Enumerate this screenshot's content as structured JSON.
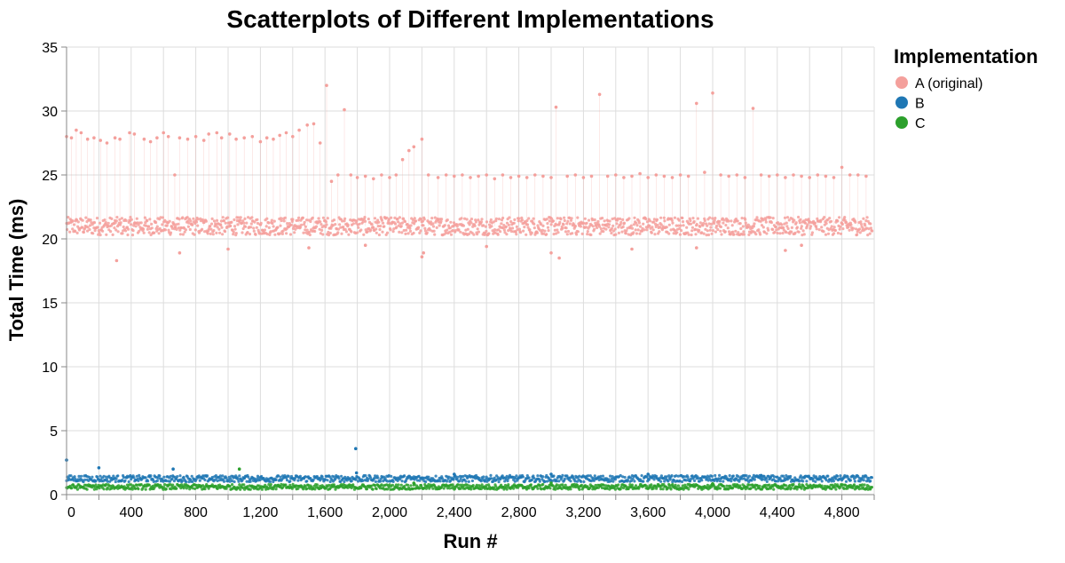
{
  "chart_data": {
    "type": "scatter",
    "title": "Scatterplots of Different Implementations",
    "xlabel": "Run #",
    "ylabel": "Total Time (ms)",
    "xlim": [
      0,
      5000
    ],
    "ylim": [
      0,
      35
    ],
    "x_ticks": [
      0,
      400,
      800,
      1200,
      1600,
      2000,
      2400,
      2800,
      3200,
      3600,
      4000,
      4400,
      4800
    ],
    "x_tick_labels": [
      "0",
      "400",
      "800",
      "1,200",
      "1,600",
      "2,000",
      "2,400",
      "2,800",
      "3,200",
      "3,600",
      "4,000",
      "4,400",
      "4,800"
    ],
    "y_ticks": [
      0,
      5,
      10,
      15,
      20,
      25,
      30,
      35
    ],
    "y_tick_labels": [
      "0",
      "5",
      "10",
      "15",
      "20",
      "25",
      "30",
      "35"
    ],
    "grid": true,
    "legend": {
      "title": "Implementation",
      "position": "top-right",
      "entries": [
        "A (original)",
        "B",
        "C"
      ]
    },
    "series": [
      {
        "name": "A (original)",
        "color": "#f4a09c",
        "typical_range": [
          20.3,
          21.7
        ],
        "points": [
          [
            0,
            28.0
          ],
          [
            30,
            27.9
          ],
          [
            60,
            28.5
          ],
          [
            90,
            28.3
          ],
          [
            130,
            27.8
          ],
          [
            170,
            27.9
          ],
          [
            210,
            27.7
          ],
          [
            250,
            27.5
          ],
          [
            300,
            27.9
          ],
          [
            330,
            27.8
          ],
          [
            390,
            28.3
          ],
          [
            420,
            28.2
          ],
          [
            480,
            27.8
          ],
          [
            520,
            27.6
          ],
          [
            560,
            27.9
          ],
          [
            600,
            28.3
          ],
          [
            630,
            28.0
          ],
          [
            670,
            25.0
          ],
          [
            700,
            27.9
          ],
          [
            750,
            27.8
          ],
          [
            800,
            28.0
          ],
          [
            850,
            27.7
          ],
          [
            880,
            28.2
          ],
          [
            930,
            28.3
          ],
          [
            960,
            27.9
          ],
          [
            1010,
            28.2
          ],
          [
            1050,
            27.8
          ],
          [
            1100,
            27.9
          ],
          [
            1150,
            28.0
          ],
          [
            1200,
            27.6
          ],
          [
            1240,
            27.9
          ],
          [
            1280,
            27.8
          ],
          [
            1320,
            28.1
          ],
          [
            1360,
            28.3
          ],
          [
            1400,
            28.0
          ],
          [
            1440,
            28.5
          ],
          [
            1490,
            28.9
          ],
          [
            1530,
            29.0
          ],
          [
            1570,
            27.5
          ],
          [
            1610,
            32.0
          ],
          [
            1640,
            24.5
          ],
          [
            1680,
            25.0
          ],
          [
            1720,
            30.1
          ],
          [
            1760,
            25.0
          ],
          [
            1800,
            24.8
          ],
          [
            1850,
            24.9
          ],
          [
            1900,
            24.7
          ],
          [
            1950,
            25.0
          ],
          [
            2000,
            24.8
          ],
          [
            2040,
            25.0
          ],
          [
            2080,
            26.2
          ],
          [
            2120,
            26.9
          ],
          [
            2150,
            27.2
          ],
          [
            2200,
            27.8
          ],
          [
            2240,
            25.0
          ],
          [
            2300,
            24.8
          ],
          [
            2350,
            25.0
          ],
          [
            2400,
            24.9
          ],
          [
            2450,
            25.0
          ],
          [
            2500,
            24.8
          ],
          [
            2550,
            24.9
          ],
          [
            2600,
            25.0
          ],
          [
            2650,
            24.7
          ],
          [
            2700,
            25.0
          ],
          [
            2750,
            24.8
          ],
          [
            2800,
            24.9
          ],
          [
            2850,
            24.8
          ],
          [
            2900,
            25.0
          ],
          [
            2950,
            24.9
          ],
          [
            3000,
            24.8
          ],
          [
            3030,
            30.3
          ],
          [
            3100,
            24.9
          ],
          [
            3150,
            25.0
          ],
          [
            3200,
            24.8
          ],
          [
            3250,
            24.9
          ],
          [
            3300,
            31.3
          ],
          [
            3350,
            24.9
          ],
          [
            3400,
            25.0
          ],
          [
            3450,
            24.8
          ],
          [
            3500,
            24.9
          ],
          [
            3550,
            25.1
          ],
          [
            3600,
            24.8
          ],
          [
            3650,
            25.0
          ],
          [
            3700,
            24.9
          ],
          [
            3750,
            24.8
          ],
          [
            3800,
            25.0
          ],
          [
            3850,
            24.9
          ],
          [
            3900,
            30.6
          ],
          [
            3950,
            25.2
          ],
          [
            4000,
            31.4
          ],
          [
            4050,
            25.0
          ],
          [
            4100,
            24.9
          ],
          [
            4150,
            25.0
          ],
          [
            4200,
            24.8
          ],
          [
            4250,
            30.2
          ],
          [
            4300,
            25.0
          ],
          [
            4350,
            24.9
          ],
          [
            4400,
            25.0
          ],
          [
            4450,
            24.8
          ],
          [
            4500,
            25.0
          ],
          [
            4550,
            24.9
          ],
          [
            4600,
            24.8
          ],
          [
            4650,
            25.0
          ],
          [
            4700,
            24.9
          ],
          [
            4750,
            24.8
          ],
          [
            4800,
            25.6
          ],
          [
            4850,
            25.0
          ],
          [
            4900,
            25.0
          ],
          [
            4950,
            24.9
          ],
          [
            310,
            18.3
          ],
          [
            700,
            18.9
          ],
          [
            1000,
            19.2
          ],
          [
            1500,
            19.3
          ],
          [
            1850,
            19.5
          ],
          [
            2200,
            18.6
          ],
          [
            2210,
            18.9
          ],
          [
            2600,
            19.4
          ],
          [
            3000,
            18.9
          ],
          [
            3050,
            18.5
          ],
          [
            3500,
            19.2
          ],
          [
            3900,
            19.3
          ],
          [
            4450,
            19.1
          ],
          [
            4550,
            19.5
          ]
        ]
      },
      {
        "name": "B",
        "color": "#1f77b4",
        "typical_range": [
          1.0,
          1.5
        ],
        "points": [
          [
            0,
            2.7
          ],
          [
            200,
            2.1
          ],
          [
            660,
            2.0
          ],
          [
            1790,
            3.6
          ],
          [
            1795,
            1.7
          ],
          [
            2400,
            1.6
          ],
          [
            3000,
            1.6
          ],
          [
            3600,
            1.6
          ],
          [
            4300,
            1.5
          ]
        ]
      },
      {
        "name": "C",
        "color": "#2ca02c",
        "typical_range": [
          0.4,
          0.8
        ],
        "points": [
          [
            1070,
            2.0
          ],
          [
            2150,
            0.9
          ],
          [
            3000,
            0.9
          ],
          [
            4000,
            0.85
          ]
        ]
      }
    ]
  }
}
